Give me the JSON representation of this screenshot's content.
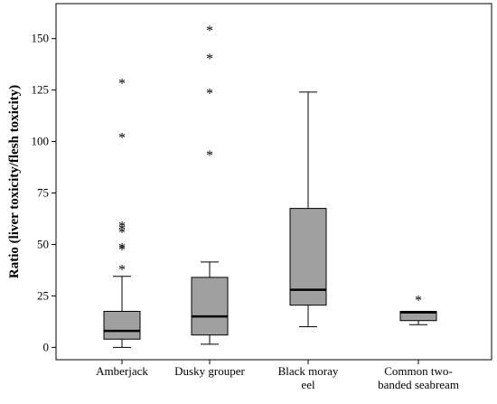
{
  "chart_data": {
    "type": "boxplot",
    "ylabel": "Ratio (liver toxicity/flesh toxicity)",
    "xlabel": "",
    "ylim": [
      -6,
      167
    ],
    "yticks": [
      0,
      25,
      50,
      75,
      100,
      125,
      150
    ],
    "box_color": "#a0a0a0",
    "categories": [
      {
        "lines": [
          "Amberjack"
        ]
      },
      {
        "lines": [
          "Dusky grouper"
        ]
      },
      {
        "lines": [
          "Black moray",
          "eel"
        ]
      },
      {
        "lines": [
          "Common two-",
          "banded seabream"
        ]
      }
    ],
    "boxes": [
      {
        "whisker_low": 0,
        "q1": 4,
        "median": 8,
        "q3": 17.5,
        "whisker_high": 34.5,
        "outliers": [
          39.5,
          49,
          50,
          57.5,
          59,
          60.5,
          103.5,
          130
        ]
      },
      {
        "whisker_low": 1.5,
        "q1": 6,
        "median": 15,
        "q3": 34,
        "whisker_high": 41.5,
        "outliers": [
          95,
          125,
          142,
          155.5
        ]
      },
      {
        "whisker_low": 10,
        "q1": 20.5,
        "median": 28,
        "q3": 67.5,
        "whisker_high": 124,
        "outliers": []
      },
      {
        "whisker_low": 11,
        "q1": 13,
        "median": 17,
        "q3": 17.5,
        "whisker_high": 17.5,
        "outliers": [
          24.5
        ]
      }
    ]
  }
}
